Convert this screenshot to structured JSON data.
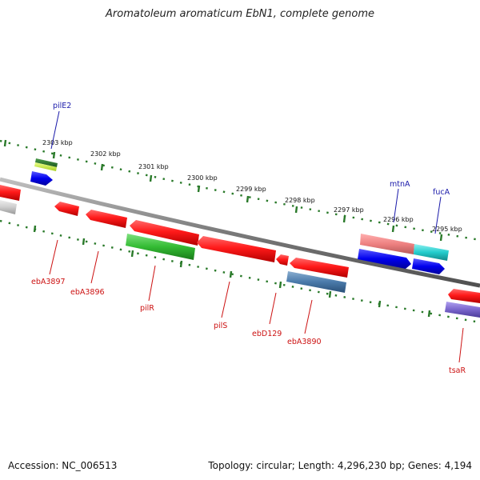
{
  "title": "Aromatoleum aromaticum EbN1, complete genome",
  "footer": {
    "accession": "Accession: NC_006513",
    "stats": "Topology: circular; Length: 4,296,230 bp; Genes: 4,194"
  },
  "scale": {
    "kbp_labels": [
      "2303 kbp",
      "2302 kbp",
      "2301 kbp",
      "2300 kbp",
      "2299 kbp",
      "2298 kbp",
      "2297 kbp",
      "2296 kbp",
      "2295 kbp"
    ]
  },
  "genes": {
    "forward": [
      "pilE2",
      "mtnA",
      "fucA"
    ],
    "reverse": [
      "ebA3897",
      "ebA3896",
      "pilR",
      "pilS",
      "ebD129",
      "ebA3890",
      "tsaR"
    ]
  },
  "colors": {
    "forward_label": "#1a1aaa",
    "reverse_label": "#cc1111",
    "backbone": "#808080",
    "tick": "#2a7a2a"
  }
}
